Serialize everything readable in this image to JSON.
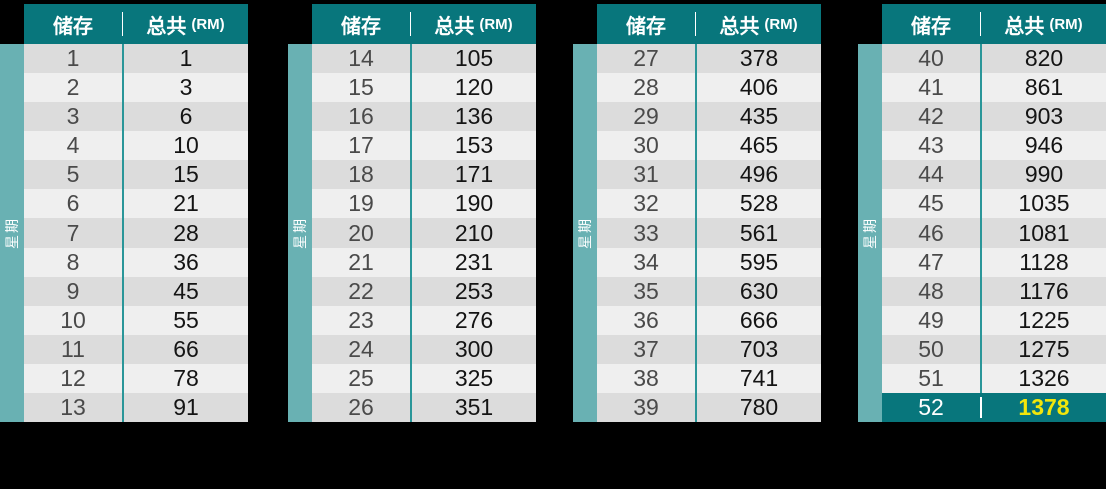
{
  "page": {
    "background": "#000000"
  },
  "colors": {
    "header_bg": "#08767C",
    "header_text": "#FFFFFF",
    "strip_bg": "#69B1B3",
    "divider": "#2A9699",
    "row_odd": "#DCDCDC",
    "row_even": "#EFEFEF",
    "week_text": "#4A4A4A",
    "total_text": "#141414",
    "highlight_bg": "#08767C",
    "highlight_week_text": "#FFFFFF",
    "highlight_total_text": "#F2E60B"
  },
  "header": {
    "col_save": "储存",
    "col_total": "总共",
    "col_total_unit": "(RM)"
  },
  "side_label": "星期",
  "tables": [
    {
      "rows": [
        {
          "week": "1",
          "total": "1"
        },
        {
          "week": "2",
          "total": "3"
        },
        {
          "week": "3",
          "total": "6"
        },
        {
          "week": "4",
          "total": "10"
        },
        {
          "week": "5",
          "total": "15"
        },
        {
          "week": "6",
          "total": "21"
        },
        {
          "week": "7",
          "total": "28"
        },
        {
          "week": "8",
          "total": "36"
        },
        {
          "week": "9",
          "total": "45"
        },
        {
          "week": "10",
          "total": "55"
        },
        {
          "week": "11",
          "total": "66"
        },
        {
          "week": "12",
          "total": "78"
        },
        {
          "week": "13",
          "total": "91"
        }
      ]
    },
    {
      "rows": [
        {
          "week": "14",
          "total": "105"
        },
        {
          "week": "15",
          "total": "120"
        },
        {
          "week": "16",
          "total": "136"
        },
        {
          "week": "17",
          "total": "153"
        },
        {
          "week": "18",
          "total": "171"
        },
        {
          "week": "19",
          "total": "190"
        },
        {
          "week": "20",
          "total": "210"
        },
        {
          "week": "21",
          "total": "231"
        },
        {
          "week": "22",
          "total": "253"
        },
        {
          "week": "23",
          "total": "276"
        },
        {
          "week": "24",
          "total": "300"
        },
        {
          "week": "25",
          "total": "325"
        },
        {
          "week": "26",
          "total": "351"
        }
      ]
    },
    {
      "rows": [
        {
          "week": "27",
          "total": "378"
        },
        {
          "week": "28",
          "total": "406"
        },
        {
          "week": "29",
          "total": "435"
        },
        {
          "week": "30",
          "total": "465"
        },
        {
          "week": "31",
          "total": "496"
        },
        {
          "week": "32",
          "total": "528"
        },
        {
          "week": "33",
          "total": "561"
        },
        {
          "week": "34",
          "total": "595"
        },
        {
          "week": "35",
          "total": "630"
        },
        {
          "week": "36",
          "total": "666"
        },
        {
          "week": "37",
          "total": "703"
        },
        {
          "week": "38",
          "total": "741"
        },
        {
          "week": "39",
          "total": "780"
        }
      ]
    },
    {
      "rows": [
        {
          "week": "40",
          "total": "820"
        },
        {
          "week": "41",
          "total": "861"
        },
        {
          "week": "42",
          "total": "903"
        },
        {
          "week": "43",
          "total": "946"
        },
        {
          "week": "44",
          "total": "990"
        },
        {
          "week": "45",
          "total": "1035"
        },
        {
          "week": "46",
          "total": "1081"
        },
        {
          "week": "47",
          "total": "1128"
        },
        {
          "week": "48",
          "total": "1176"
        },
        {
          "week": "49",
          "total": "1225"
        },
        {
          "week": "50",
          "total": "1275"
        },
        {
          "week": "51",
          "total": "1326"
        },
        {
          "week": "52",
          "total": "1378",
          "highlight": true
        }
      ]
    }
  ]
}
